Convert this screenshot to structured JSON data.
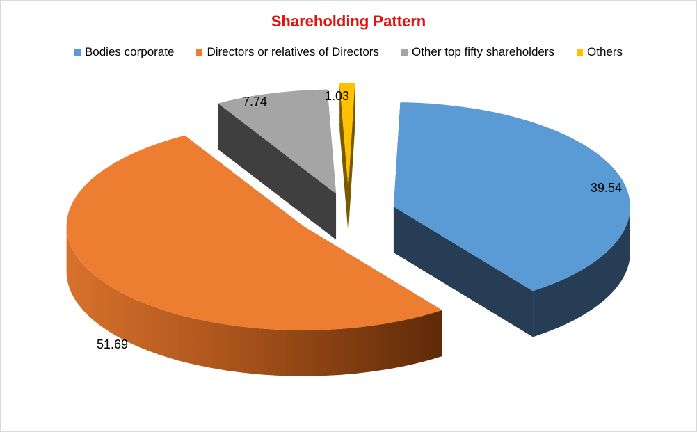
{
  "chart_data": {
    "type": "pie",
    "title": "Shareholding Pattern",
    "title_color": "#e0130e",
    "style": "3d-exploded",
    "legend_position": "top",
    "slices": [
      {
        "name": "Bodies corporate",
        "value": 39.54,
        "label": "39.54",
        "color": "#5b9bd5",
        "side_color": "#263d55"
      },
      {
        "name": "Directors or relatives of Directors",
        "value": 51.69,
        "label": "51.69",
        "color": "#ed7d31",
        "side_color": "#b05510"
      },
      {
        "name": "Other top fifty shareholders",
        "value": 7.74,
        "label": "7.74",
        "color": "#a5a5a5",
        "side_color": "#3f3f3f"
      },
      {
        "name": "Others",
        "value": 1.03,
        "label": "1.03",
        "color": "#ffc000",
        "side_color": "#7a5a00"
      }
    ]
  }
}
